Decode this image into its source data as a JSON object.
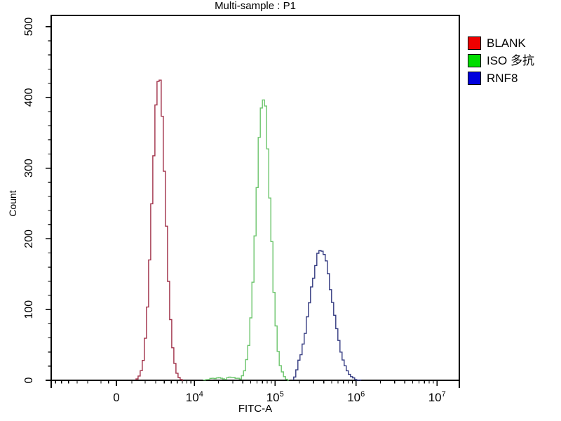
{
  "title": "Multi-sample : P1",
  "axes": {
    "x": {
      "label": "FITC-A",
      "scale": "biexponential",
      "major_tick_labels": [
        "0",
        "10^4",
        "10^5",
        "10^6",
        "10^7"
      ],
      "major_tick_values": [
        0,
        10000,
        100000,
        1000000,
        10000000
      ]
    },
    "y": {
      "label": "Count",
      "major_tick_labels": [
        "0",
        "100",
        "200",
        "300",
        "400",
        "500"
      ],
      "major_tick_values": [
        0,
        100,
        200,
        300,
        400,
        500
      ],
      "minor_tick_step": 20
    }
  },
  "legend": {
    "items": [
      {
        "label": "BLANK",
        "swatch_color": "#ee0000"
      },
      {
        "label": "ISO 多抗",
        "swatch_color": "#00dd00"
      },
      {
        "label": "RNF8",
        "swatch_color": "#0000dd"
      }
    ]
  },
  "chart_data": {
    "type": "line",
    "subtype": "flow-cytometry-histogram-overlay",
    "title": "Multi-sample : P1",
    "xlabel": "FITC-A",
    "ylabel": "Count",
    "x_scale": "biexponential (logicle), linear around 0 then log decades 10^4..10^7",
    "xlim": [
      -6800,
      16000000
    ],
    "ylim": [
      0,
      515
    ],
    "grid": false,
    "legend_position": "outside-top-right",
    "series": [
      {
        "name": "BLANK",
        "color": "#a03048",
        "peak": {
          "x": 3300,
          "y": 430
        },
        "points": [
          [
            1290,
            0
          ],
          [
            1400,
            2
          ],
          [
            1500,
            5
          ],
          [
            1660,
            12
          ],
          [
            1890,
            33
          ],
          [
            2070,
            64
          ],
          [
            2250,
            114
          ],
          [
            2440,
            181
          ],
          [
            2640,
            261
          ],
          [
            2790,
            315
          ],
          [
            3030,
            384
          ],
          [
            3150,
            415
          ],
          [
            3310,
            430
          ],
          [
            3570,
            415
          ],
          [
            3720,
            384
          ],
          [
            3890,
            340
          ],
          [
            4150,
            261
          ],
          [
            4430,
            181
          ],
          [
            4730,
            114
          ],
          [
            5060,
            64
          ],
          [
            5420,
            33
          ],
          [
            5800,
            12
          ],
          [
            6350,
            5
          ],
          [
            6800,
            1
          ],
          [
            7100,
            0
          ]
        ]
      },
      {
        "name": "ISO 多抗",
        "color": "#6cc56c",
        "peak": {
          "x": 71000,
          "y": 403
        },
        "points": [
          [
            13000,
            0
          ],
          [
            16000,
            2
          ],
          [
            20000,
            3
          ],
          [
            24000,
            2
          ],
          [
            28000,
            4
          ],
          [
            32000,
            3
          ],
          [
            36000,
            2
          ],
          [
            39000,
            4
          ],
          [
            43000,
            16
          ],
          [
            47500,
            49
          ],
          [
            52500,
            121
          ],
          [
            58000,
            232
          ],
          [
            61500,
            305
          ],
          [
            65500,
            364
          ],
          [
            68000,
            391
          ],
          [
            71000,
            403
          ],
          [
            74000,
            398
          ],
          [
            77000,
            379
          ],
          [
            81500,
            327
          ],
          [
            86500,
            257
          ],
          [
            92000,
            185
          ],
          [
            97500,
            121
          ],
          [
            103500,
            73
          ],
          [
            110000,
            40
          ],
          [
            117000,
            20
          ],
          [
            126500,
            7
          ],
          [
            137000,
            2
          ],
          [
            148000,
            0
          ]
        ]
      },
      {
        "name": "RNF8",
        "color": "#333a80",
        "peak": {
          "x": 371000,
          "y": 186
        },
        "points": [
          [
            170000,
            0
          ],
          [
            180000,
            10
          ],
          [
            192000,
            22
          ],
          [
            212000,
            40
          ],
          [
            234000,
            66
          ],
          [
            259000,
            99
          ],
          [
            287000,
            134
          ],
          [
            316000,
            164
          ],
          [
            343000,
            180
          ],
          [
            371000,
            186
          ],
          [
            402000,
            180
          ],
          [
            435000,
            164
          ],
          [
            471000,
            140
          ],
          [
            520000,
            106
          ],
          [
            576000,
            72
          ],
          [
            636000,
            45
          ],
          [
            702000,
            25
          ],
          [
            775000,
            13
          ],
          [
            858000,
            6
          ],
          [
            947000,
            3
          ],
          [
            1045000,
            1
          ],
          [
            1160000,
            0
          ]
        ]
      }
    ]
  }
}
